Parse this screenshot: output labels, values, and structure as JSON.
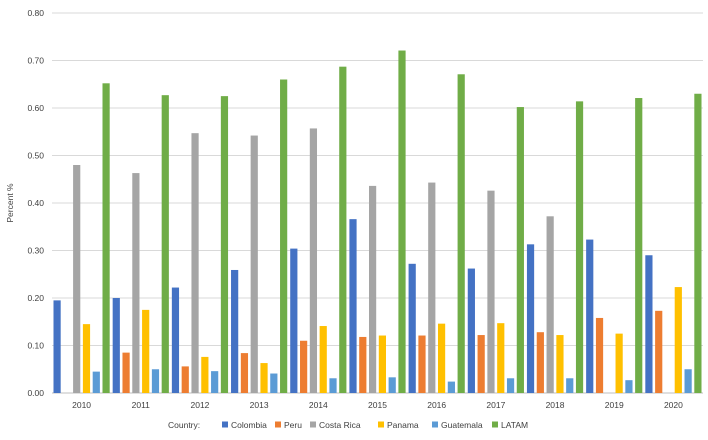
{
  "chart_data": {
    "type": "bar",
    "title": "",
    "xlabel": "",
    "ylabel": "Percent %",
    "ylim": [
      0,
      0.8
    ],
    "yticks": [
      "0.00",
      "0.10",
      "0.20",
      "0.30",
      "0.40",
      "0.50",
      "0.60",
      "0.70",
      "0.80"
    ],
    "grid": true,
    "legend_position": "bottom",
    "legend_title": "Country:",
    "categories": [
      "2010",
      "2011",
      "2012",
      "2013",
      "2014",
      "2015",
      "2016",
      "2017",
      "2018",
      "2019",
      "2020"
    ],
    "series": [
      {
        "name": "Colombia",
        "color": "#4472C4",
        "values": [
          0.195,
          0.2,
          0.222,
          0.259,
          0.304,
          0.366,
          0.272,
          0.262,
          0.313,
          0.323,
          0.29
        ]
      },
      {
        "name": "Peru",
        "color": "#ED7D31",
        "values": [
          null,
          0.085,
          0.056,
          0.084,
          0.11,
          0.118,
          0.121,
          0.122,
          0.128,
          0.158,
          0.173
        ]
      },
      {
        "name": "Costa Rica",
        "color": "#A5A5A5",
        "values": [
          0.48,
          0.463,
          0.547,
          0.542,
          0.557,
          0.436,
          0.443,
          0.426,
          0.372,
          null,
          null
        ]
      },
      {
        "name": "Panama",
        "color": "#FFC000",
        "values": [
          0.145,
          0.175,
          0.076,
          0.063,
          0.141,
          0.121,
          0.146,
          0.147,
          0.122,
          0.125,
          0.223
        ]
      },
      {
        "name": "Guatemala",
        "color": "#5B9BD5",
        "values": [
          0.045,
          0.05,
          0.046,
          0.041,
          0.031,
          0.033,
          0.024,
          0.031,
          0.031,
          0.027,
          0.05
        ]
      },
      {
        "name": "LATAM",
        "color": "#70AD47",
        "values": [
          0.652,
          0.627,
          0.625,
          0.66,
          0.687,
          0.721,
          0.671,
          0.602,
          0.614,
          0.621,
          0.63
        ]
      }
    ]
  }
}
